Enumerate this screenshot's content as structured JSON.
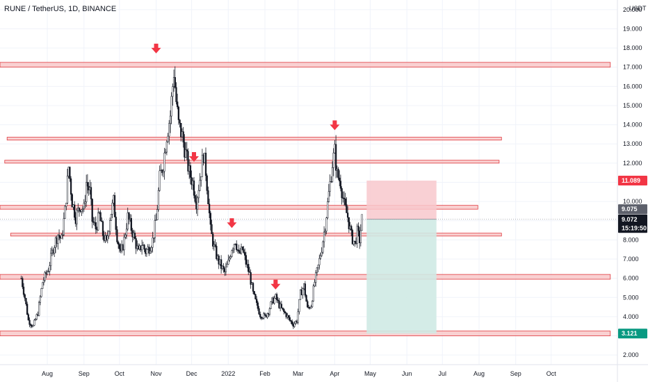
{
  "header": {
    "title": "RUNE / TetherUS, 1D, BINANCE",
    "currency_label": "USDT"
  },
  "colors": {
    "zone_fill": "#f8c4c6",
    "zone_stroke": "#e0393e",
    "arrow": "#f23645",
    "candle": "#131722",
    "stop_fill": "#f8c8cc",
    "target_fill": "#cfeae4",
    "price_tag": "#131722",
    "stop_tag": "#f23645",
    "target_tag": "#089981",
    "gray_tag": "#5d606b"
  },
  "chart_data": {
    "type": "candlestick",
    "title": "RUNE / TetherUS, 1D, BINANCE",
    "ylim": [
      1.5,
      20.5
    ],
    "y_ticks": [
      "2.000",
      "3.000",
      "4.000",
      "5.000",
      "6.000",
      "7.000",
      "8.000",
      "9.000",
      "10.000",
      "11.000",
      "12.000",
      "13.000",
      "14.000",
      "15.000",
      "16.000",
      "17.000",
      "18.000",
      "19.000",
      "20.000"
    ],
    "x_labels": [
      {
        "label": "Aug",
        "date": "2021-08-01"
      },
      {
        "label": "Sep",
        "date": "2021-09-01"
      },
      {
        "label": "Oct",
        "date": "2021-10-01"
      },
      {
        "label": "Nov",
        "date": "2021-11-01"
      },
      {
        "label": "Dec",
        "date": "2021-12-01"
      },
      {
        "label": "2022",
        "date": "2022-01-01"
      },
      {
        "label": "Feb",
        "date": "2022-02-01"
      },
      {
        "label": "Mar",
        "date": "2022-03-01"
      },
      {
        "label": "Apr",
        "date": "2022-04-01"
      },
      {
        "label": "May",
        "date": "2022-05-01"
      },
      {
        "label": "Jun",
        "date": "2022-06-01"
      },
      {
        "label": "Jul",
        "date": "2022-07-01"
      },
      {
        "label": "Aug",
        "date": "2022-08-01"
      },
      {
        "label": "Sep",
        "date": "2022-09-01"
      },
      {
        "label": "Oct",
        "date": "2022-10-01"
      }
    ],
    "price_path": [
      [
        "2021-07-10",
        6.0
      ],
      [
        "2021-07-13",
        5.0
      ],
      [
        "2021-07-16",
        3.8
      ],
      [
        "2021-07-20",
        3.5
      ],
      [
        "2021-07-24",
        4.2
      ],
      [
        "2021-07-28",
        5.8
      ],
      [
        "2021-08-02",
        6.5
      ],
      [
        "2021-08-06",
        7.6
      ],
      [
        "2021-08-10",
        8.3
      ],
      [
        "2021-08-13",
        8.0
      ],
      [
        "2021-08-16",
        9.5
      ],
      [
        "2021-08-19",
        11.8
      ],
      [
        "2021-08-22",
        10.0
      ],
      [
        "2021-08-25",
        9.2
      ],
      [
        "2021-08-29",
        9.8
      ],
      [
        "2021-09-01",
        9.6
      ],
      [
        "2021-09-03",
        11.0
      ],
      [
        "2021-09-06",
        10.5
      ],
      [
        "2021-09-08",
        9.0
      ],
      [
        "2021-09-11",
        8.6
      ],
      [
        "2021-09-14",
        9.3
      ],
      [
        "2021-09-17",
        8.3
      ],
      [
        "2021-09-20",
        7.8
      ],
      [
        "2021-09-23",
        9.2
      ],
      [
        "2021-09-26",
        10.0
      ],
      [
        "2021-09-29",
        8.2
      ],
      [
        "2021-10-02",
        7.2
      ],
      [
        "2021-10-05",
        8.0
      ],
      [
        "2021-10-08",
        9.2
      ],
      [
        "2021-10-11",
        8.6
      ],
      [
        "2021-10-14",
        8.0
      ],
      [
        "2021-10-17",
        7.3
      ],
      [
        "2021-10-20",
        7.8
      ],
      [
        "2021-10-23",
        7.4
      ],
      [
        "2021-10-26",
        7.6
      ],
      [
        "2021-10-29",
        8.0
      ],
      [
        "2021-11-01",
        9.0
      ],
      [
        "2021-11-04",
        11.2
      ],
      [
        "2021-11-07",
        12.0
      ],
      [
        "2021-11-10",
        13.5
      ],
      [
        "2021-11-13",
        14.5
      ],
      [
        "2021-11-16",
        16.8
      ],
      [
        "2021-11-18",
        15.2
      ],
      [
        "2021-11-20",
        14.0
      ],
      [
        "2021-11-23",
        13.4
      ],
      [
        "2021-11-26",
        12.5
      ],
      [
        "2021-11-29",
        11.5
      ],
      [
        "2021-12-02",
        11.0
      ],
      [
        "2021-12-05",
        10.0
      ],
      [
        "2021-12-08",
        11.2
      ],
      [
        "2021-12-11",
        12.5
      ],
      [
        "2021-12-13",
        11.6
      ],
      [
        "2021-12-15",
        10.2
      ],
      [
        "2021-12-17",
        8.5
      ],
      [
        "2021-12-20",
        7.6
      ],
      [
        "2021-12-23",
        7.0
      ],
      [
        "2021-12-26",
        6.6
      ],
      [
        "2021-12-29",
        6.3
      ],
      [
        "2022-01-01",
        6.8
      ],
      [
        "2022-01-04",
        7.6
      ],
      [
        "2022-01-07",
        8.0
      ],
      [
        "2022-01-10",
        7.2
      ],
      [
        "2022-01-13",
        7.5
      ],
      [
        "2022-01-16",
        6.8
      ],
      [
        "2022-01-19",
        6.2
      ],
      [
        "2022-01-22",
        5.2
      ],
      [
        "2022-01-25",
        4.6
      ],
      [
        "2022-01-28",
        4.1
      ],
      [
        "2022-02-01",
        4.0
      ],
      [
        "2022-02-04",
        4.3
      ],
      [
        "2022-02-07",
        4.8
      ],
      [
        "2022-02-10",
        5.0
      ],
      [
        "2022-02-13",
        4.6
      ],
      [
        "2022-02-16",
        4.3
      ],
      [
        "2022-02-19",
        4.1
      ],
      [
        "2022-02-22",
        3.8
      ],
      [
        "2022-02-25",
        3.6
      ],
      [
        "2022-02-28",
        3.8
      ],
      [
        "2022-03-03",
        5.2
      ],
      [
        "2022-03-06",
        5.6
      ],
      [
        "2022-03-09",
        4.4
      ],
      [
        "2022-03-12",
        4.6
      ],
      [
        "2022-03-15",
        5.8
      ],
      [
        "2022-03-18",
        6.6
      ],
      [
        "2022-03-21",
        7.6
      ],
      [
        "2022-03-24",
        8.8
      ],
      [
        "2022-03-27",
        10.4
      ],
      [
        "2022-03-30",
        12.0
      ],
      [
        "2022-04-01",
        12.6
      ],
      [
        "2022-04-03",
        11.4
      ],
      [
        "2022-04-06",
        11.0
      ],
      [
        "2022-04-09",
        9.8
      ],
      [
        "2022-04-12",
        9.2
      ],
      [
        "2022-04-15",
        8.2
      ],
      [
        "2022-04-18",
        7.8
      ],
      [
        "2022-04-20",
        8.4
      ],
      [
        "2022-04-22",
        8.0
      ],
      [
        "2022-04-24",
        9.072
      ]
    ],
    "zones": [
      {
        "from": "2021-06-20",
        "to": "2022-11-20",
        "low": 17.0,
        "high": 17.25
      },
      {
        "from": "2021-06-28",
        "to": "2022-08-20",
        "low": 13.2,
        "high": 13.35
      },
      {
        "from": "2021-06-26",
        "to": "2022-08-18",
        "low": 12.0,
        "high": 12.15
      },
      {
        "from": "2021-06-22",
        "to": "2022-07-31",
        "low": 9.6,
        "high": 9.8
      },
      {
        "from": "2021-07-01",
        "to": "2022-08-20",
        "low": 8.2,
        "high": 8.35
      },
      {
        "from": "2021-06-20",
        "to": "2022-11-20",
        "low": 5.95,
        "high": 6.2
      },
      {
        "from": "2021-06-20",
        "to": "2022-11-20",
        "low": 3.0,
        "high": 3.25
      }
    ],
    "arrows": [
      {
        "date": "2021-11-01",
        "price": 17.9
      },
      {
        "date": "2021-12-03",
        "price": 12.25
      },
      {
        "date": "2022-01-04",
        "price": 8.8
      },
      {
        "date": "2022-02-10",
        "price": 5.6
      },
      {
        "date": "2022-04-01",
        "price": 13.9
      }
    ],
    "position": {
      "from": "2022-04-28",
      "to": "2022-06-26",
      "entry": 9.075,
      "stop": 11.089,
      "target": 3.121
    },
    "price_tags": [
      {
        "text": "11.089",
        "price": 11.089,
        "kind": "stop"
      },
      {
        "text": "9.075",
        "price": 9.6,
        "kind": "gray"
      },
      {
        "text": "9.072",
        "price": 9.072,
        "kind": "price"
      },
      {
        "text": "15:19:50",
        "price": 8.62,
        "kind": "price"
      },
      {
        "text": "3.121",
        "price": 3.121,
        "kind": "target"
      }
    ]
  }
}
